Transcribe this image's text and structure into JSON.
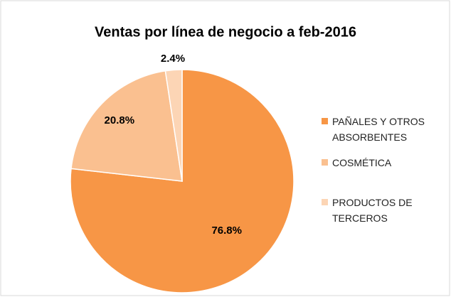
{
  "chart_data": {
    "type": "pie",
    "title": "Ventas por línea de negocio a feb-2016",
    "categories": [
      "PAÑALES Y OTROS ABSORBENTES",
      "COSMÉTICA",
      "PRODUCTOS DE TERCEROS"
    ],
    "values": [
      76.8,
      20.8,
      2.4
    ],
    "value_labels": [
      "76.8%",
      "20.8%",
      "2.4%"
    ],
    "colors": [
      "#f79646",
      "#fac090",
      "#fcd5b5"
    ],
    "legend": "right"
  }
}
